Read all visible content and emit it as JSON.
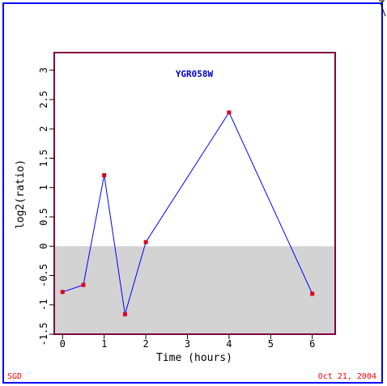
{
  "footer": {
    "source": "SGD",
    "date": "Oct 21, 2004"
  },
  "colors": {
    "frame": "#0000ff",
    "plot_border": "#800040",
    "negative_band": "#d3d3d3",
    "line": "#0000ff",
    "marker": "#e00020",
    "title": "#0000cc",
    "footer_text": "#ff0000"
  },
  "chart_data": {
    "type": "line",
    "title": "YGR058W",
    "xlabel": "Time (hours)",
    "ylabel": "log2(ratio)",
    "xlim": [
      -0.2,
      6.55
    ],
    "ylim": [
      -1.5,
      3.3
    ],
    "x_ticks": [
      "0",
      "1",
      "2",
      "3",
      "4",
      "5",
      "6"
    ],
    "y_ticks": [
      "-1.5",
      "-1",
      "-0.5",
      "0",
      "0.5",
      "1",
      "1.5",
      "2",
      "2.5",
      "3"
    ],
    "shaded_region": "y < 0",
    "grid": false,
    "series": [
      {
        "x": [
          0,
          0.5,
          1,
          1.5,
          2,
          4,
          6
        ],
        "values": [
          -0.78,
          -0.66,
          1.21,
          -1.16,
          0.07,
          2.28,
          -0.81
        ]
      }
    ]
  }
}
